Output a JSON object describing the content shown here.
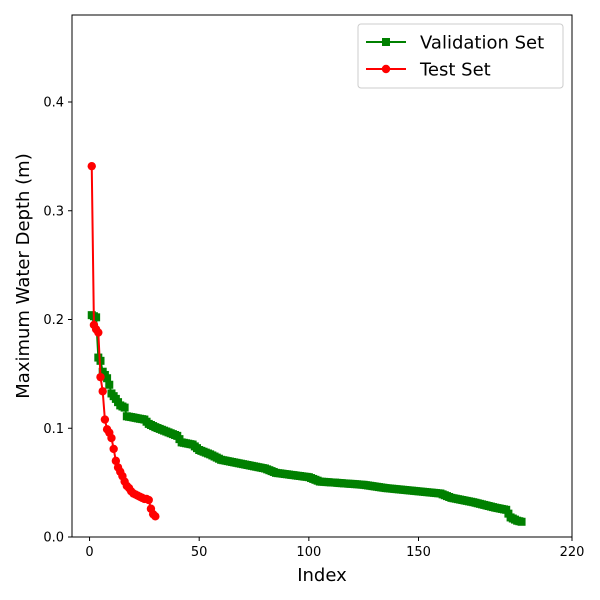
{
  "chart_data": {
    "type": "line",
    "title": "",
    "xlabel": "Index",
    "ylabel": "Maximum Water Depth (m)",
    "xlim": [
      -8,
      220
    ],
    "ylim": [
      0,
      0.48
    ],
    "xticks": [
      0,
      50,
      100,
      150,
      220
    ],
    "yticks": [
      0.0,
      0.1,
      0.2,
      0.3,
      0.4
    ],
    "xtick_labels": [
      "0",
      "50",
      "100",
      "150",
      "220"
    ],
    "ytick_labels": [
      "0.0",
      "0.1",
      "0.2",
      "0.3",
      "0.4"
    ],
    "grid": false,
    "legend_position": "top-right",
    "series": [
      {
        "name": "Validation Set",
        "color": "#008000",
        "marker": "square",
        "anchors": [
          [
            1,
            0.204
          ],
          [
            2,
            0.203
          ],
          [
            3,
            0.202
          ],
          [
            4,
            0.165
          ],
          [
            5,
            0.162
          ],
          [
            6,
            0.152
          ],
          [
            8,
            0.146
          ],
          [
            9,
            0.14
          ],
          [
            10,
            0.132
          ],
          [
            12,
            0.127
          ],
          [
            14,
            0.121
          ],
          [
            16,
            0.119
          ],
          [
            17,
            0.111
          ],
          [
            25,
            0.108
          ],
          [
            27,
            0.104
          ],
          [
            30,
            0.101
          ],
          [
            35,
            0.097
          ],
          [
            40,
            0.093
          ],
          [
            42,
            0.087
          ],
          [
            47,
            0.085
          ],
          [
            50,
            0.08
          ],
          [
            55,
            0.076
          ],
          [
            60,
            0.071
          ],
          [
            70,
            0.067
          ],
          [
            80,
            0.063
          ],
          [
            85,
            0.059
          ],
          [
            100,
            0.055
          ],
          [
            105,
            0.051
          ],
          [
            125,
            0.048
          ],
          [
            135,
            0.045
          ],
          [
            150,
            0.042
          ],
          [
            160,
            0.04
          ],
          [
            165,
            0.036
          ],
          [
            175,
            0.032
          ],
          [
            185,
            0.027
          ],
          [
            190,
            0.025
          ],
          [
            192,
            0.018
          ],
          [
            195,
            0.015
          ],
          [
            197,
            0.014
          ]
        ]
      },
      {
        "name": "Test Set",
        "color": "#ff0000",
        "marker": "circle",
        "x": [
          1,
          2,
          3,
          4,
          5,
          6,
          7,
          8,
          9,
          10,
          11,
          12,
          13,
          14,
          15,
          16,
          17,
          18,
          19,
          20,
          21,
          22,
          23,
          24,
          25,
          26,
          27,
          28,
          29,
          30
        ],
        "y": [
          0.341,
          0.195,
          0.191,
          0.188,
          0.147,
          0.134,
          0.108,
          0.099,
          0.096,
          0.091,
          0.081,
          0.07,
          0.064,
          0.06,
          0.056,
          0.051,
          0.047,
          0.045,
          0.042,
          0.04,
          0.039,
          0.038,
          0.037,
          0.036,
          0.035,
          0.035,
          0.034,
          0.026,
          0.021,
          0.019
        ]
      }
    ]
  }
}
